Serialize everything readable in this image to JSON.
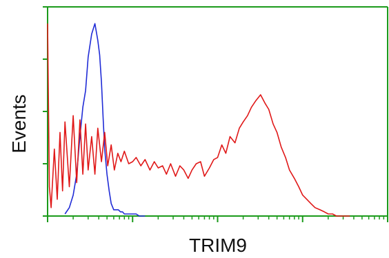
{
  "chart_data": {
    "type": "line",
    "title": "",
    "xlabel": "TRIM9",
    "ylabel": "Events",
    "x_scale": "log",
    "xlim": [
      1,
      10000
    ],
    "ylim": [
      0,
      100
    ],
    "grid": false,
    "legend": "none",
    "axis_color": "#1a9a1a",
    "series": [
      {
        "color": "#1f2bd6",
        "x": [
          1.6,
          1.8,
          2.0,
          2.2,
          2.4,
          2.6,
          2.8,
          3.0,
          3.3,
          3.6,
          3.9,
          4.1,
          4.3,
          4.5,
          4.7,
          5.0,
          5.3,
          5.6,
          6.0,
          6.4,
          6.8,
          7.2,
          7.6,
          8.0,
          8.6,
          9.2,
          10,
          11,
          12,
          13,
          14
        ],
        "y": [
          1,
          4,
          10,
          20,
          38,
          52,
          60,
          76,
          87,
          92,
          84,
          77,
          64,
          47,
          32,
          20,
          12,
          6,
          3,
          3,
          3,
          2,
          2,
          1,
          1,
          1,
          1,
          1,
          0,
          0,
          0
        ]
      },
      {
        "color": "#e01818",
        "x": [
          1.0,
          1.05,
          1.1,
          1.2,
          1.3,
          1.4,
          1.5,
          1.6,
          1.8,
          2.0,
          2.2,
          2.4,
          2.6,
          2.8,
          3.0,
          3.3,
          3.6,
          3.9,
          4.3,
          4.7,
          5.1,
          5.6,
          6.1,
          6.7,
          7.3,
          8,
          9,
          10,
          11,
          12.5,
          14,
          16,
          18,
          20,
          22.5,
          25,
          28,
          32,
          36,
          40,
          45,
          50,
          56,
          63,
          70,
          80,
          90,
          100,
          112,
          125,
          140,
          160,
          180,
          200,
          225,
          250,
          280,
          320,
          360,
          400,
          450,
          500,
          560,
          630,
          700,
          800,
          900,
          1000,
          1120,
          1250,
          1400,
          1600,
          1800,
          2000,
          2250,
          2500,
          2800,
          3200,
          3600
        ],
        "y": [
          92,
          14,
          4,
          32,
          8,
          40,
          12,
          45,
          14,
          48,
          16,
          46,
          20,
          44,
          22,
          38,
          20,
          42,
          26,
          40,
          24,
          34,
          22,
          30,
          26,
          31,
          25,
          26,
          28,
          24,
          27,
          22,
          26,
          23,
          24,
          20,
          25,
          19,
          24,
          22,
          18,
          22,
          25,
          26,
          19,
          23,
          27,
          28,
          34,
          30,
          38,
          35,
          42,
          45,
          48,
          52,
          55,
          58,
          54,
          51,
          44,
          40,
          33,
          28,
          22,
          18,
          14,
          10,
          8,
          6,
          4,
          3,
          2,
          1,
          1,
          0,
          0,
          0,
          0
        ]
      }
    ]
  }
}
